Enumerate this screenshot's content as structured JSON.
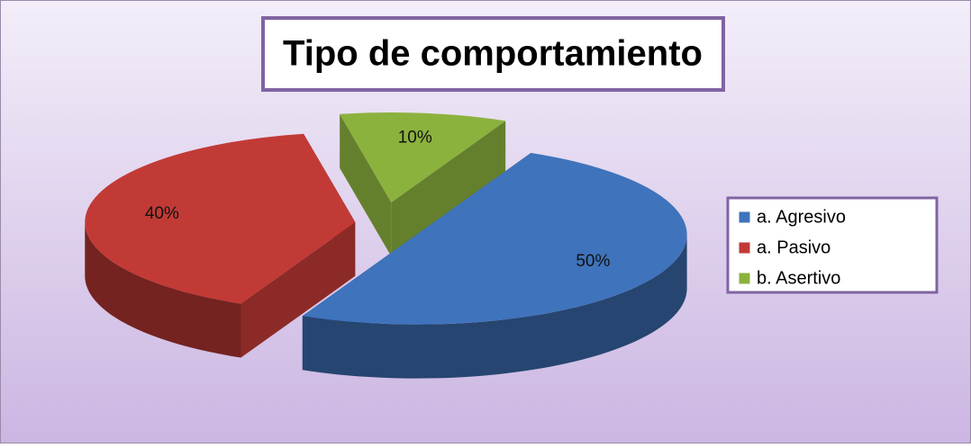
{
  "chart_data": {
    "type": "pie",
    "title": "Tipo de comportamiento",
    "categories": [
      "a. Agresivo",
      "a. Pasivo",
      "b. Asertivo"
    ],
    "values": [
      50,
      40,
      10
    ],
    "value_labels": [
      "50%",
      "40%",
      "10%"
    ],
    "colors": [
      "#3f73bb",
      "#c23a36",
      "#8cb23e"
    ],
    "legend": "right"
  }
}
